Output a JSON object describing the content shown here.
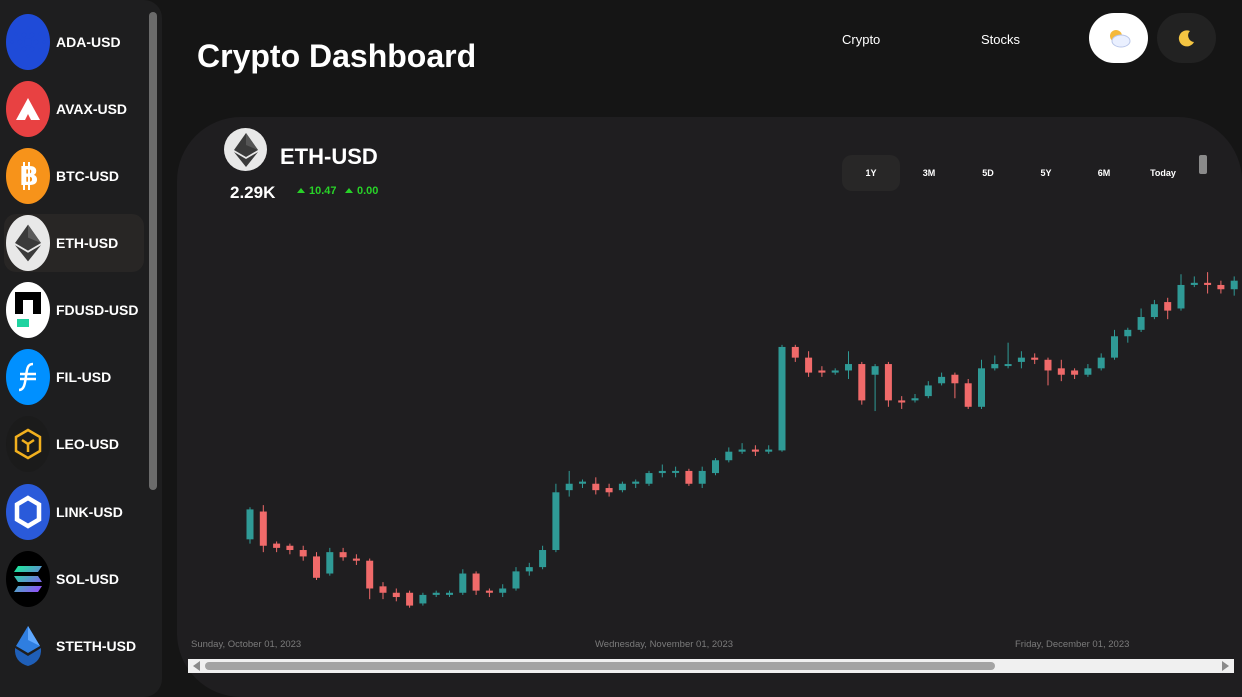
{
  "sidebar": {
    "items": [
      {
        "label": "ADA-USD",
        "icon": "cardano-icon",
        "color": "#1f4bd8",
        "active": false
      },
      {
        "label": "AVAX-USD",
        "icon": "avalanche-icon",
        "color": "#e84142",
        "active": false
      },
      {
        "label": "BTC-USD",
        "icon": "bitcoin-icon",
        "color": "#f7931a",
        "active": false
      },
      {
        "label": "ETH-USD",
        "icon": "ethereum-icon",
        "color": "#e8e8e8",
        "active": true
      },
      {
        "label": "FDUSD-USD",
        "icon": "fdusd-icon",
        "color": "#ffffff",
        "active": false
      },
      {
        "label": "FIL-USD",
        "icon": "filecoin-icon",
        "color": "#0090ff",
        "active": false
      },
      {
        "label": "LEO-USD",
        "icon": "leo-icon",
        "color": "#1b1b1b",
        "active": false
      },
      {
        "label": "LINK-USD",
        "icon": "chainlink-icon",
        "color": "#2a5ada",
        "active": false
      },
      {
        "label": "SOL-USD",
        "icon": "solana-icon",
        "color": "#000000",
        "active": false
      },
      {
        "label": "STETH-USD",
        "icon": "steth-icon",
        "color": "#1e1e1f",
        "active": false
      }
    ]
  },
  "header": {
    "title": "Crypto Dashboard",
    "nav": [
      "Crypto",
      "Stocks"
    ],
    "theme_light_icon": "sun-cloud-icon",
    "theme_dark_icon": "moon-icon"
  },
  "asset": {
    "name": "ETH-USD",
    "price": "2.29K",
    "change_1": "10.47",
    "change_2": "0.00",
    "up_color": "#28d228",
    "down_color": "#f06a6a",
    "candle_up_color": "#2f9a96"
  },
  "ranges": [
    "1Y",
    "3M",
    "5D",
    "5Y",
    "6M",
    "Today"
  ],
  "active_range": "1Y",
  "chart_data": {
    "type": "candlestick",
    "x_ticks": [
      "Sunday, October 01, 2023",
      "Wednesday, November 01, 2023",
      "Friday, December 01, 2023"
    ],
    "candles": [
      [
        1670,
        1740,
        1660,
        1745
      ],
      [
        1735,
        1655,
        1640,
        1750
      ],
      [
        1660,
        1650,
        1640,
        1665
      ],
      [
        1655,
        1645,
        1635,
        1660
      ],
      [
        1645,
        1630,
        1620,
        1655
      ],
      [
        1630,
        1580,
        1575,
        1640
      ],
      [
        1590,
        1640,
        1585,
        1650
      ],
      [
        1640,
        1628,
        1620,
        1650
      ],
      [
        1625,
        1620,
        1610,
        1635
      ],
      [
        1620,
        1555,
        1530,
        1625
      ],
      [
        1560,
        1545,
        1530,
        1570
      ],
      [
        1545,
        1535,
        1525,
        1555
      ],
      [
        1545,
        1515,
        1510,
        1550
      ],
      [
        1520,
        1540,
        1515,
        1545
      ],
      [
        1540,
        1545,
        1535,
        1550
      ],
      [
        1540,
        1545,
        1535,
        1550
      ],
      [
        1545,
        1590,
        1540,
        1600
      ],
      [
        1590,
        1550,
        1540,
        1595
      ],
      [
        1550,
        1545,
        1535,
        1555
      ],
      [
        1545,
        1555,
        1535,
        1565
      ],
      [
        1555,
        1595,
        1550,
        1605
      ],
      [
        1595,
        1605,
        1585,
        1615
      ],
      [
        1605,
        1645,
        1600,
        1655
      ],
      [
        1645,
        1780,
        1640,
        1800
      ],
      [
        1785,
        1800,
        1770,
        1830
      ],
      [
        1800,
        1805,
        1790,
        1810
      ],
      [
        1800,
        1785,
        1775,
        1815
      ],
      [
        1790,
        1780,
        1770,
        1800
      ],
      [
        1785,
        1800,
        1780,
        1805
      ],
      [
        1800,
        1805,
        1790,
        1810
      ],
      [
        1800,
        1825,
        1795,
        1830
      ],
      [
        1825,
        1830,
        1815,
        1845
      ],
      [
        1830,
        1830,
        1815,
        1840
      ],
      [
        1830,
        1800,
        1795,
        1835
      ],
      [
        1800,
        1830,
        1790,
        1840
      ],
      [
        1825,
        1855,
        1820,
        1860
      ],
      [
        1855,
        1875,
        1850,
        1885
      ],
      [
        1875,
        1880,
        1870,
        1895
      ],
      [
        1880,
        1875,
        1865,
        1890
      ],
      [
        1875,
        1880,
        1870,
        1890
      ],
      [
        1878,
        2120,
        1875,
        2125
      ],
      [
        2120,
        2095,
        2085,
        2125
      ],
      [
        2095,
        2060,
        2050,
        2110
      ],
      [
        2065,
        2060,
        2050,
        2075
      ],
      [
        2060,
        2065,
        2055,
        2070
      ],
      [
        2065,
        2080,
        2045,
        2110
      ],
      [
        2080,
        1995,
        1985,
        2085
      ],
      [
        2055,
        2075,
        1970,
        2080
      ],
      [
        2080,
        1995,
        1980,
        2085
      ],
      [
        1995,
        1990,
        1975,
        2005
      ],
      [
        1995,
        2000,
        1990,
        2010
      ],
      [
        2005,
        2030,
        2000,
        2040
      ],
      [
        2035,
        2050,
        2030,
        2060
      ],
      [
        2055,
        2035,
        2000,
        2060
      ],
      [
        2035,
        1980,
        1975,
        2045
      ],
      [
        1980,
        2070,
        1975,
        2090
      ],
      [
        2070,
        2080,
        2065,
        2100
      ],
      [
        2080,
        2080,
        2070,
        2130
      ],
      [
        2085,
        2095,
        2070,
        2110
      ],
      [
        2095,
        2090,
        2080,
        2105
      ],
      [
        2090,
        2065,
        2030,
        2095
      ],
      [
        2070,
        2055,
        2040,
        2090
      ],
      [
        2065,
        2055,
        2045,
        2070
      ],
      [
        2055,
        2070,
        2050,
        2080
      ],
      [
        2070,
        2095,
        2065,
        2105
      ],
      [
        2095,
        2145,
        2090,
        2160
      ],
      [
        2145,
        2160,
        2130,
        2165
      ],
      [
        2160,
        2190,
        2155,
        2210
      ],
      [
        2190,
        2220,
        2185,
        2230
      ],
      [
        2225,
        2205,
        2185,
        2235
      ],
      [
        2210,
        2265,
        2205,
        2290
      ],
      [
        2265,
        2270,
        2260,
        2285
      ],
      [
        2270,
        2265,
        2245,
        2295
      ],
      [
        2265,
        2255,
        2245,
        2275
      ],
      [
        2255,
        2275,
        2240,
        2285
      ],
      [
        2275,
        2200,
        2195,
        2280
      ],
      [
        2205,
        2195,
        2170,
        2220
      ],
      [
        2195,
        2215,
        2165,
        2225
      ]
    ],
    "ylim": [
      1500,
      2300
    ]
  }
}
